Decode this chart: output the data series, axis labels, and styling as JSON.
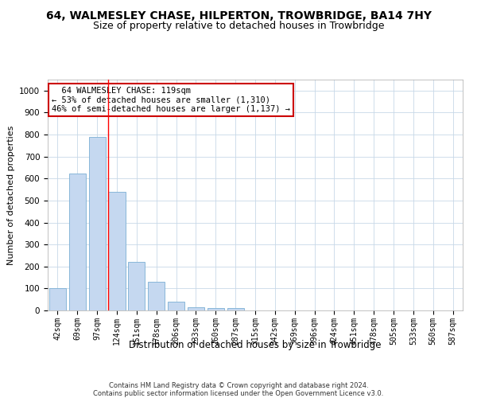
{
  "title": "64, WALMESLEY CHASE, HILPERTON, TROWBRIDGE, BA14 7HY",
  "subtitle": "Size of property relative to detached houses in Trowbridge",
  "xlabel": "Distribution of detached houses by size in Trowbridge",
  "ylabel": "Number of detached properties",
  "categories": [
    "42sqm",
    "69sqm",
    "97sqm",
    "124sqm",
    "151sqm",
    "178sqm",
    "206sqm",
    "233sqm",
    "260sqm",
    "287sqm",
    "315sqm",
    "342sqm",
    "369sqm",
    "396sqm",
    "424sqm",
    "451sqm",
    "478sqm",
    "505sqm",
    "533sqm",
    "560sqm",
    "587sqm"
  ],
  "values": [
    102,
    622,
    790,
    540,
    220,
    132,
    41,
    15,
    11,
    10,
    0,
    0,
    0,
    0,
    0,
    0,
    0,
    0,
    0,
    0,
    0
  ],
  "bar_color": "#c5d8f0",
  "bar_edge_color": "#7bafd4",
  "red_line_index": 3,
  "annotation_text": "  64 WALMESLEY CHASE: 119sqm  \n← 53% of detached houses are smaller (1,310)\n46% of semi-detached houses are larger (1,137) →",
  "annotation_box_color": "#ffffff",
  "annotation_box_edge": "#cc0000",
  "ylim": [
    0,
    1050
  ],
  "yticks": [
    0,
    100,
    200,
    300,
    400,
    500,
    600,
    700,
    800,
    900,
    1000
  ],
  "footer": "Contains HM Land Registry data © Crown copyright and database right 2024.\nContains public sector information licensed under the Open Government Licence v3.0.",
  "background_color": "#ffffff",
  "grid_color": "#c8d8e8",
  "title_fontsize": 10,
  "subtitle_fontsize": 9,
  "tick_fontsize": 7,
  "ylabel_fontsize": 8,
  "xlabel_fontsize": 8.5,
  "footer_fontsize": 6
}
